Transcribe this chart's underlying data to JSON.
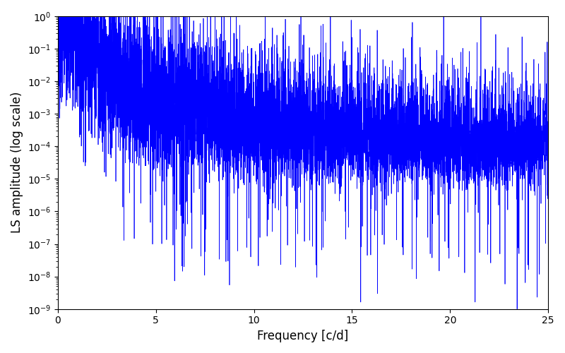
{
  "xlabel": "Frequency [c/d]",
  "ylabel": "LS amplitude (log scale)",
  "xlim": [
    0,
    25
  ],
  "ylim": [
    1e-09,
    1
  ],
  "line_color": "#0000ff",
  "line_width": 0.5,
  "figsize": [
    8.0,
    5.0
  ],
  "dpi": 100,
  "seed": 7,
  "n_points": 8000,
  "freq_max": 25.0,
  "background_color": "#ffffff"
}
